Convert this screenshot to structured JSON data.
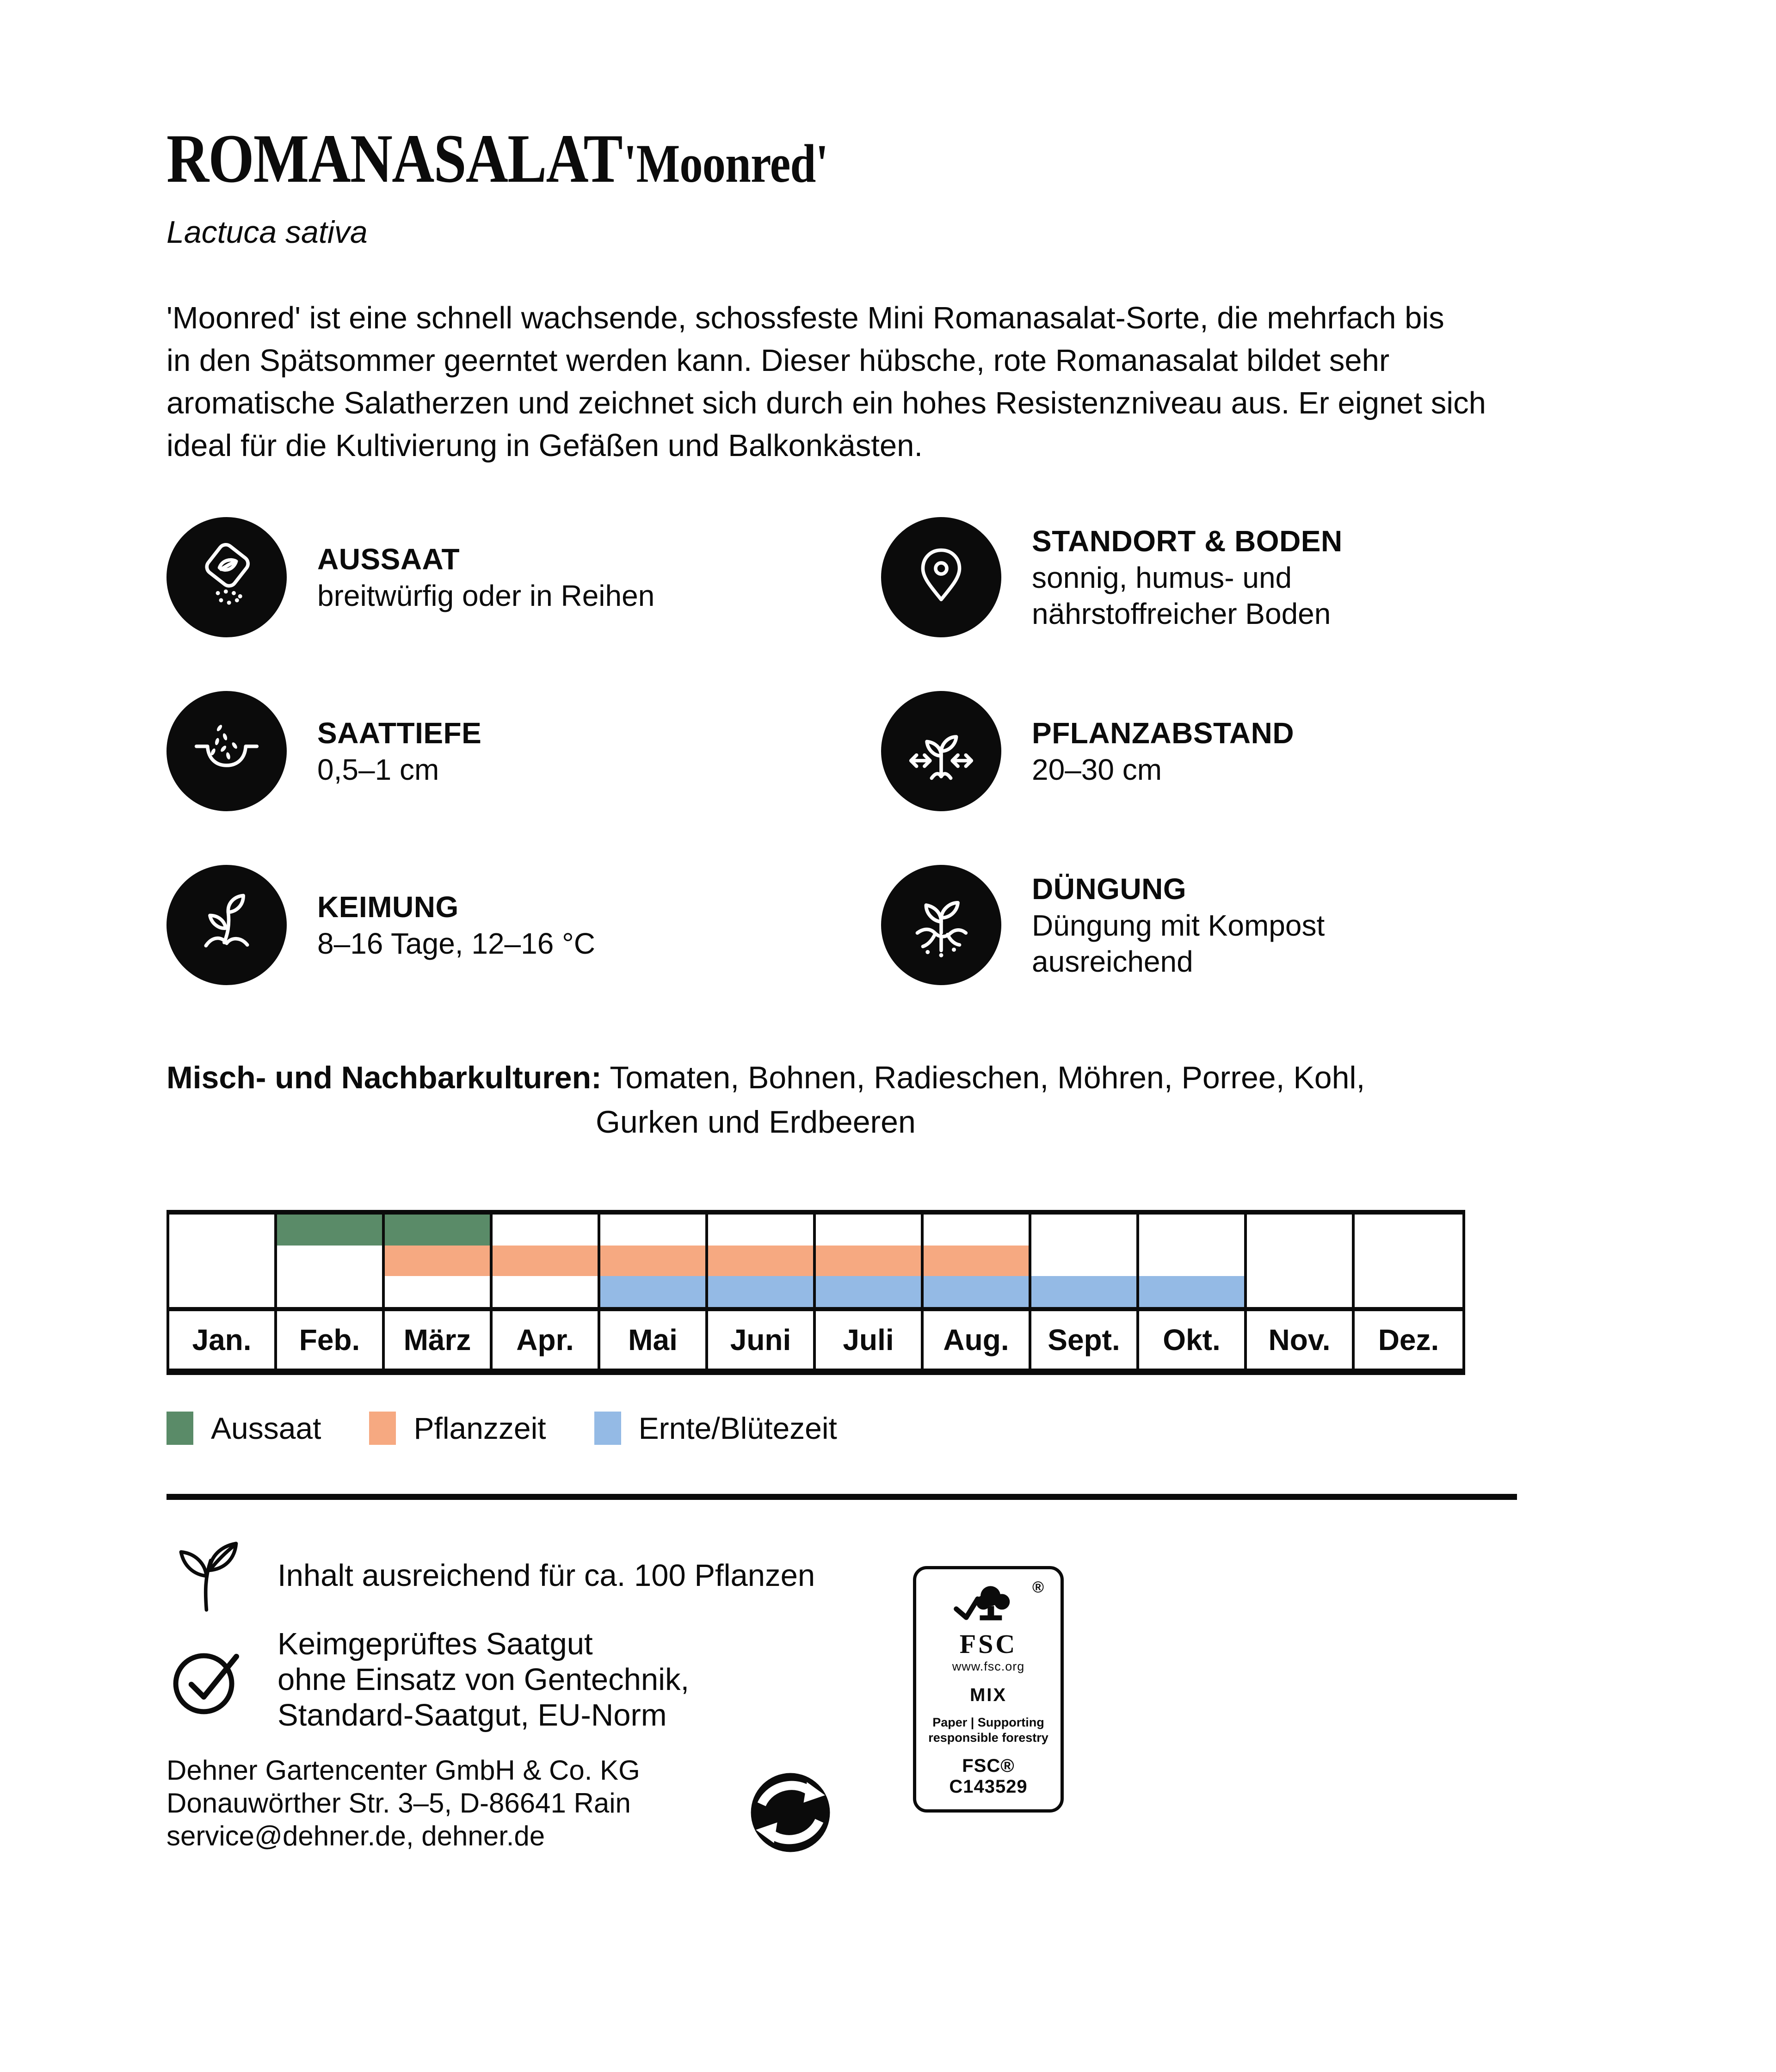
{
  "header": {
    "title": "ROMANASALAT",
    "variety": "'Moonred'",
    "botanical": "Lactuca sativa"
  },
  "description_lines": [
    "'Moonred' ist eine schnell wachsende, schossfeste Mini Romanasalat-Sorte, die mehrfach bis",
    "in den Spätsommer geerntet werden kann. Dieser hübsche, rote Romanasalat bildet sehr",
    "aromatische Salatherzen und zeichnet sich durch ein hohes Resistenzniveau aus. Er eignet sich",
    "ideal für die Kultivierung in Gefäßen und Balkonkästen."
  ],
  "info_items": [
    {
      "icon": "seed-bag-icon",
      "label": "AUSSAAT",
      "value": "breitwürfig oder in Reihen"
    },
    {
      "icon": "location-pin-icon",
      "label": "STANDORT & BODEN",
      "value": "sonnig, humus- und nährstoffreicher Boden"
    },
    {
      "icon": "seed-depth-icon",
      "label": "SAATTIEFE",
      "value": "0,5–1 cm"
    },
    {
      "icon": "plant-spacing-icon",
      "label": "PFLANZABSTAND",
      "value": "20–30 cm"
    },
    {
      "icon": "germination-icon",
      "label": "KEIMUNG",
      "value": "8–16 Tage, 12–16 °C"
    },
    {
      "icon": "fertilizer-icon",
      "label": "DÜNGUNG",
      "value": "Düngung mit Kompost ausreichend"
    }
  ],
  "companions": {
    "label": "Misch- und Nachbarkulturen:",
    "line1": "Tomaten, Bohnen, Radieschen, Möhren, Porree, Kohl,",
    "line2": "Gurken und Erdbeeren"
  },
  "chart_data": {
    "type": "gantt-calendar",
    "months": [
      "Jan.",
      "Feb.",
      "März",
      "Apr.",
      "Mai",
      "Juni",
      "Juli",
      "Aug.",
      "Sept.",
      "Okt.",
      "Nov.",
      "Dez."
    ],
    "series": [
      {
        "name": "Aussaat",
        "color": "#5a8b68",
        "start_month": 2,
        "end_month": 3,
        "band": 0
      },
      {
        "name": "Pflanzzeit",
        "color": "#f6a981",
        "start_month": 3,
        "end_month": 8,
        "band": 1
      },
      {
        "name": "Ernte/Blütezeit",
        "color": "#94bae5",
        "start_month": 5,
        "end_month": 10,
        "band": 2
      }
    ],
    "legend_position": "below",
    "grid": true
  },
  "footer": {
    "content_note": "Inhalt ausreichend für ca. 100 Pflanzen",
    "quality_lines": [
      "Keimgeprüftes Saatgut",
      "ohne Einsatz von Gentechnik,",
      "Standard-Saatgut, EU-Norm"
    ],
    "address_lines": [
      "Dehner Gartencenter GmbH & Co. KG",
      "Donauwörther Str. 3–5, D-86641 Rain",
      "service@dehner.de, dehner.de"
    ],
    "fsc": {
      "registered": "®",
      "brand": "FSC",
      "url": "www.fsc.org",
      "grade": "MIX",
      "claim_line1": "Paper | Supporting",
      "claim_line2": "responsible forestry",
      "license": "FSC® C143529"
    }
  },
  "colors": {
    "ink": "#0b0b0b",
    "aussaat": "#5a8b68",
    "pflanzzeit": "#f6a981",
    "ernte_bluetezeit": "#94bae5"
  }
}
